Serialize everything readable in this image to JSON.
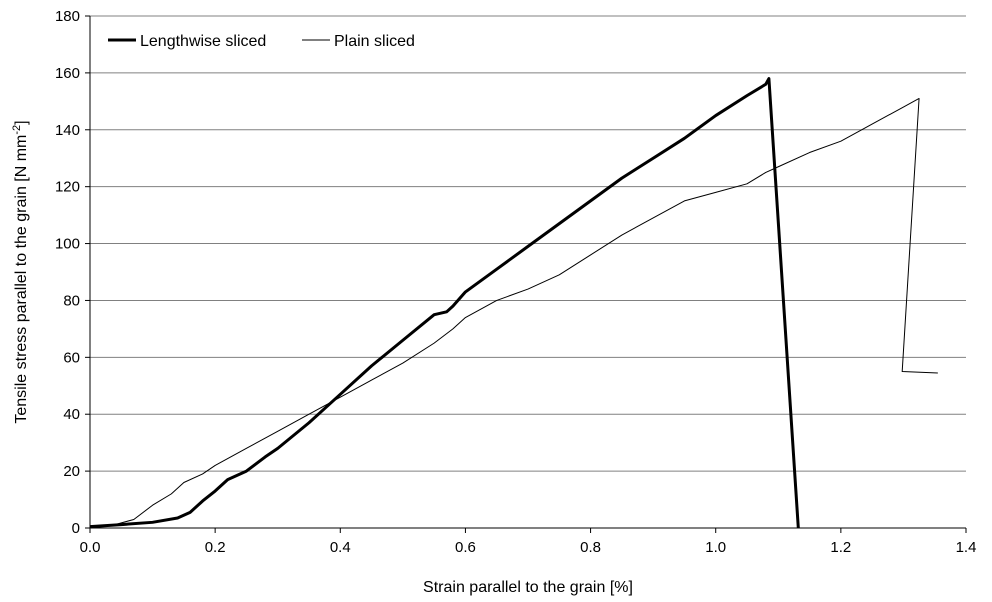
{
  "chart_data": {
    "type": "line",
    "xlabel": "Strain parallel to the grain [%]",
    "ylabel": "Tensile stress parallel to the grain [N mm",
    "ylabel_sup": "-2",
    "ylabel_end": "]",
    "xlim": [
      0,
      1.4
    ],
    "ylim": [
      0,
      180
    ],
    "xticks": [
      0.0,
      0.2,
      0.4,
      0.6,
      0.8,
      1.0,
      1.2,
      1.4
    ],
    "xtick_labels": [
      "0.0",
      "0.2",
      "0.4",
      "0.6",
      "0.8",
      "1.0",
      "1.2",
      "1.4"
    ],
    "yticks": [
      0,
      20,
      40,
      60,
      80,
      100,
      120,
      140,
      160,
      180
    ],
    "ytick_labels": [
      "0",
      "20",
      "40",
      "60",
      "80",
      "100",
      "120",
      "140",
      "160",
      "180"
    ],
    "grid": "horizontal",
    "legend_position": "top-left",
    "series": [
      {
        "name": "Lengthwise sliced",
        "style": "thick",
        "color": "#000000",
        "points": [
          [
            0,
            0.5
          ],
          [
            0.05,
            1.2
          ],
          [
            0.1,
            2.0
          ],
          [
            0.14,
            3.5
          ],
          [
            0.16,
            5.5
          ],
          [
            0.18,
            9.5
          ],
          [
            0.2,
            13
          ],
          [
            0.22,
            17
          ],
          [
            0.25,
            20
          ],
          [
            0.28,
            25
          ],
          [
            0.3,
            28
          ],
          [
            0.35,
            37
          ],
          [
            0.4,
            47
          ],
          [
            0.45,
            57
          ],
          [
            0.5,
            66
          ],
          [
            0.55,
            75
          ],
          [
            0.57,
            76
          ],
          [
            0.58,
            78
          ],
          [
            0.6,
            83
          ],
          [
            0.65,
            91
          ],
          [
            0.7,
            99
          ],
          [
            0.75,
            107
          ],
          [
            0.8,
            115
          ],
          [
            0.85,
            123
          ],
          [
            0.9,
            130
          ],
          [
            0.95,
            137
          ],
          [
            1.0,
            145
          ],
          [
            1.05,
            152
          ],
          [
            1.08,
            156
          ],
          [
            1.085,
            158
          ],
          [
            1.132,
            0
          ]
        ]
      },
      {
        "name": "Plain sliced",
        "style": "thin",
        "color": "#000000",
        "points": [
          [
            0,
            0.5
          ],
          [
            0.04,
            1.2
          ],
          [
            0.07,
            3
          ],
          [
            0.1,
            8
          ],
          [
            0.13,
            12
          ],
          [
            0.15,
            16
          ],
          [
            0.18,
            19
          ],
          [
            0.2,
            22
          ],
          [
            0.25,
            28
          ],
          [
            0.3,
            34
          ],
          [
            0.35,
            40
          ],
          [
            0.4,
            46
          ],
          [
            0.45,
            52
          ],
          [
            0.5,
            58
          ],
          [
            0.55,
            65
          ],
          [
            0.58,
            70
          ],
          [
            0.6,
            74
          ],
          [
            0.65,
            80
          ],
          [
            0.7,
            84
          ],
          [
            0.75,
            89
          ],
          [
            0.8,
            96
          ],
          [
            0.85,
            103
          ],
          [
            0.9,
            109
          ],
          [
            0.95,
            115
          ],
          [
            1.0,
            118
          ],
          [
            1.05,
            121
          ],
          [
            1.08,
            125
          ],
          [
            1.1,
            127
          ],
          [
            1.15,
            132
          ],
          [
            1.2,
            136
          ],
          [
            1.25,
            142
          ],
          [
            1.3,
            148
          ],
          [
            1.325,
            151
          ],
          [
            1.298,
            55
          ],
          [
            1.355,
            54.5
          ]
        ]
      }
    ]
  }
}
